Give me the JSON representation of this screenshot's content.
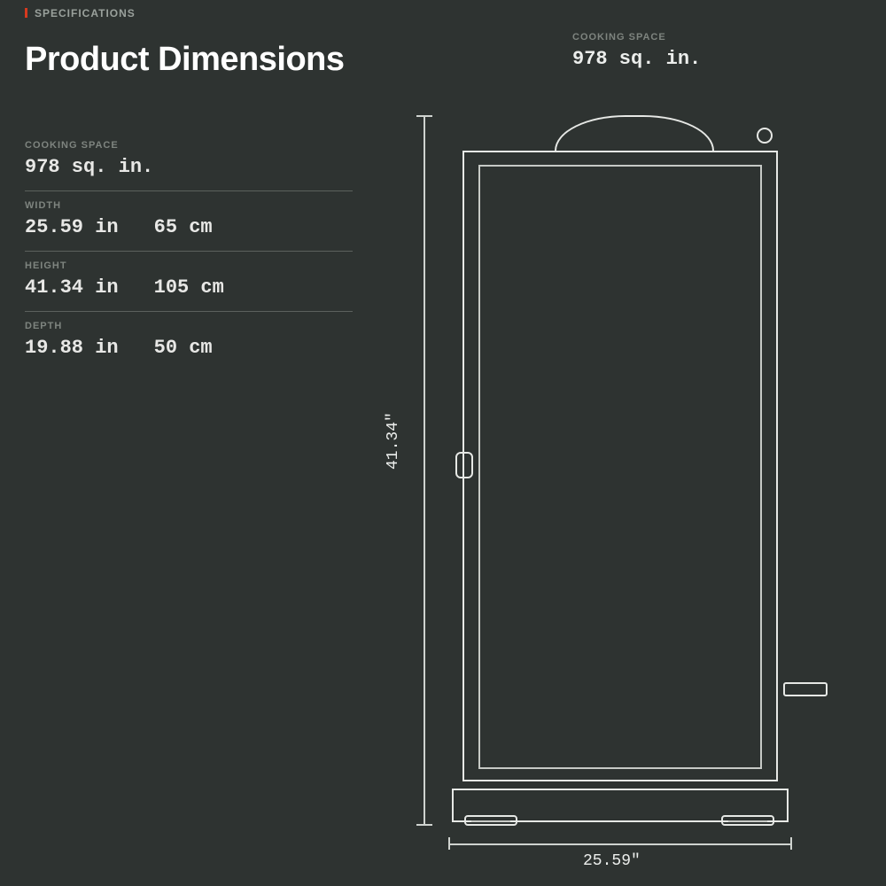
{
  "header": {
    "eyebrow": "SPECIFICATIONS",
    "title": "Product Dimensions"
  },
  "specs": [
    {
      "label": "COOKING SPACE",
      "primary": "978 sq. in.",
      "secondary": ""
    },
    {
      "label": "WIDTH",
      "primary": "25.59 in",
      "secondary": "65 cm"
    },
    {
      "label": "HEIGHT",
      "primary": "41.34 in",
      "secondary": "105 cm"
    },
    {
      "label": "DEPTH",
      "primary": "19.88 in",
      "secondary": "50 cm"
    }
  ],
  "diagram": {
    "cooking_space_label": "COOKING SPACE",
    "cooking_space_value": "978 sq. in.",
    "height_label": "41.34\"",
    "width_label": "25.59\"",
    "colors": {
      "background": "#2e3331",
      "line": "#e6e8e5",
      "line_secondary": "#c6c9c5",
      "guide": "#cfd3cf",
      "accent": "#d63a1f",
      "text_muted": "#7e847f",
      "text": "#eceeec"
    }
  }
}
